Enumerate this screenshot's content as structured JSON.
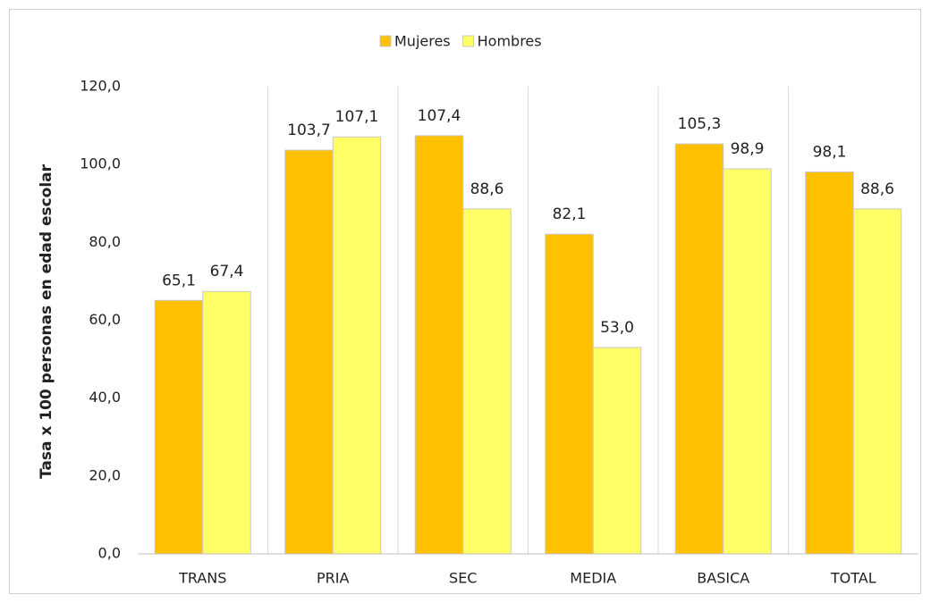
{
  "chart_data": {
    "type": "bar",
    "ylabel": "Tasa x 100 personas en edad escolar",
    "categories": [
      "TRANS",
      "PRIA",
      "SEC",
      "MEDIA",
      "BASICA",
      "TOTAL"
    ],
    "series": [
      {
        "name": "Mujeres",
        "color": "#ffc000",
        "values": [
          65.1,
          103.7,
          107.4,
          82.1,
          105.3,
          98.1
        ],
        "value_labels": [
          "65,1",
          "103,7",
          "107,4",
          "82,1",
          "105,3",
          "98,1"
        ]
      },
      {
        "name": "Hombres",
        "color": "#ffff66",
        "values": [
          67.4,
          107.1,
          88.6,
          53.0,
          98.9,
          88.6
        ],
        "value_labels": [
          "67,4",
          "107,1",
          "88,6",
          "53,0",
          "98,9",
          "88,6"
        ]
      }
    ],
    "ylim": [
      0,
      120
    ],
    "yticks": [
      {
        "value": 0,
        "label": "0,0"
      },
      {
        "value": 20,
        "label": "20,0"
      },
      {
        "value": 40,
        "label": "40,0"
      },
      {
        "value": 60,
        "label": "60,0"
      },
      {
        "value": 80,
        "label": "80,0"
      },
      {
        "value": 100,
        "label": "100,0"
      },
      {
        "value": 120,
        "label": "120,0"
      }
    ],
    "grid": false,
    "legend": "top"
  }
}
